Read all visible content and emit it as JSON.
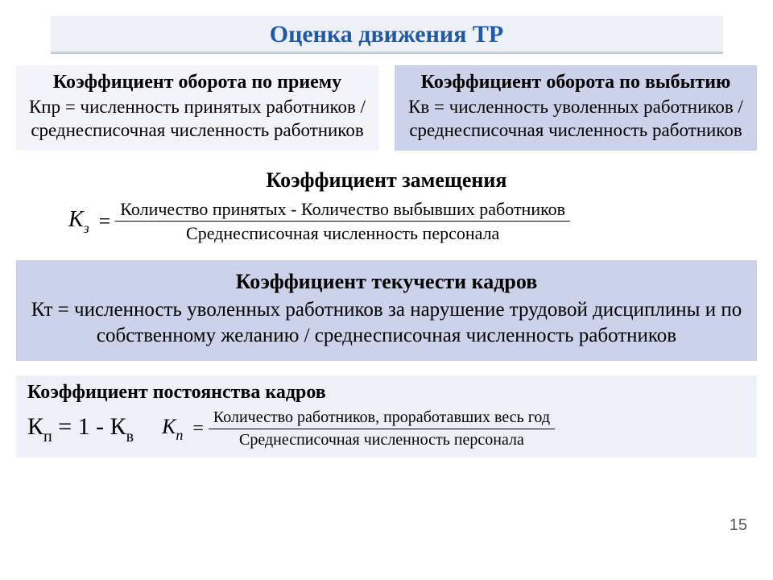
{
  "title": "Оценка движения ТР",
  "colors": {
    "title_text": "#215aa4",
    "light_box": "#f3f4f9",
    "title_bg": "#eef0f7",
    "purple_box": "#ccd2e9",
    "underline": "#c9cdd8"
  },
  "box1": {
    "heading": "Коэффициент оборота по приему",
    "body": "Кпр = численность принятых работников / среднесписочная численность работников"
  },
  "box2": {
    "heading": "Коэффициент оборота по выбытию",
    "body": "Кв = численность уволенных работников / среднесписочная численность работников"
  },
  "replacement": {
    "heading": "Коэффициент замещения",
    "var_main": "К",
    "var_sub": "з",
    "numerator": "Количество принятых - Количество выбывших работников",
    "denominator": "Среднесписочная численность персонала"
  },
  "turnover": {
    "heading": "Коэффициент текучести кадров",
    "body": "Кт = численность уволенных работников за нарушение трудовой дисциплины и по собственному желанию  / среднесписочная численность работников"
  },
  "constancy": {
    "heading": "Коэффициент постоянства кадров",
    "left_main": "К",
    "left_sub": "п",
    "left_tail": " = 1 - К",
    "left_tail_sub": "в",
    "var_main": "К",
    "var_sub": "п",
    "numerator": "Количество работников, проработавших весь год",
    "denominator": "Среднесписочная численность персонала"
  },
  "slide_number": "15"
}
